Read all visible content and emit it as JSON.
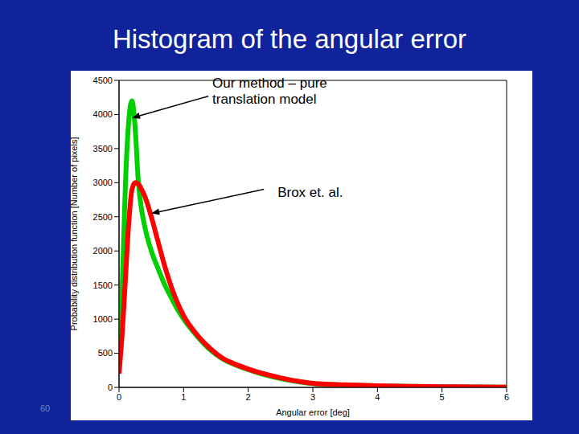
{
  "chart_data": {
    "type": "line",
    "title": "Histogram of the angular error",
    "x_label": "Angular error [deg]",
    "y_label": "Probability distribution function [Number of pixels]",
    "slide_number": "60",
    "x": [
      0,
      0.05,
      0.1,
      0.15,
      0.2,
      0.25,
      0.3,
      0.35,
      0.4,
      0.5,
      0.6,
      0.7,
      0.8,
      0.9,
      1.0,
      1.2,
      1.4,
      1.6,
      1.8,
      2.0,
      2.2,
      2.5,
      2.8,
      3.0,
      3.5,
      4.0,
      4.5,
      5.0,
      5.5,
      6.0
    ],
    "series": [
      {
        "name": "Our method – pure translation model",
        "color": "#00d000",
        "arrow_to": [
          0.2,
          3950
        ],
        "values": [
          300,
          1500,
          3000,
          3900,
          4200,
          3800,
          3000,
          2600,
          2350,
          2000,
          1750,
          1520,
          1330,
          1150,
          1000,
          760,
          560,
          420,
          330,
          260,
          200,
          130,
          80,
          55,
          35,
          22,
          14,
          9,
          6,
          4
        ]
      },
      {
        "name": "Brox et. al.",
        "color": "#ff0000",
        "arrow_to": [
          0.5,
          2550
        ],
        "values": [
          200,
          800,
          1600,
          2400,
          2900,
          3000,
          2980,
          2900,
          2800,
          2500,
          2150,
          1800,
          1500,
          1250,
          1050,
          780,
          580,
          430,
          340,
          270,
          210,
          140,
          85,
          60,
          38,
          24,
          15,
          10,
          6,
          4
        ]
      }
    ],
    "xlim": [
      0,
      6
    ],
    "ylim": [
      0,
      4500
    ],
    "xticks": [
      0,
      1,
      2,
      3,
      4,
      5,
      6
    ],
    "yticks": [
      0,
      500,
      1000,
      1500,
      2000,
      2500,
      3000,
      3500,
      4000,
      4500
    ],
    "grid": false
  }
}
